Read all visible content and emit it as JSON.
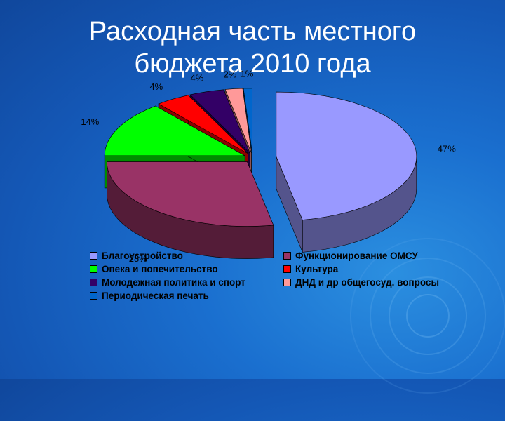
{
  "slide": {
    "title_line1": "Расходная часть местного",
    "title_line2": "бюджета 2010 года"
  },
  "chart_data": {
    "type": "pie",
    "title": "",
    "style": "3d-exploded",
    "legend_position": "bottom",
    "slices": [
      {
        "label": "Благоустройство",
        "value": 47,
        "value_label": "47%",
        "color": "#9999ff"
      },
      {
        "label": "Функционирование ОМСУ",
        "value": 28,
        "value_label": "28%",
        "color": "#993366"
      },
      {
        "label": "Опека и попечительство",
        "value": 14,
        "value_label": "14%",
        "color": "#00ff00"
      },
      {
        "label": "Культура",
        "value": 4,
        "value_label": "4%",
        "color": "#ff0000"
      },
      {
        "label": "Молодежная политика и спорт",
        "value": 4,
        "value_label": "4%",
        "color": "#330066"
      },
      {
        "label": "ДНД и др общегосуд. вопросы",
        "value": 2,
        "value_label": "2%",
        "color": "#ff9999"
      },
      {
        "label": "Периодическая печать",
        "value": 1,
        "value_label": "1%",
        "color": "#0066cc"
      }
    ],
    "legend_order": [
      0,
      1,
      2,
      3,
      4,
      5,
      6
    ]
  }
}
